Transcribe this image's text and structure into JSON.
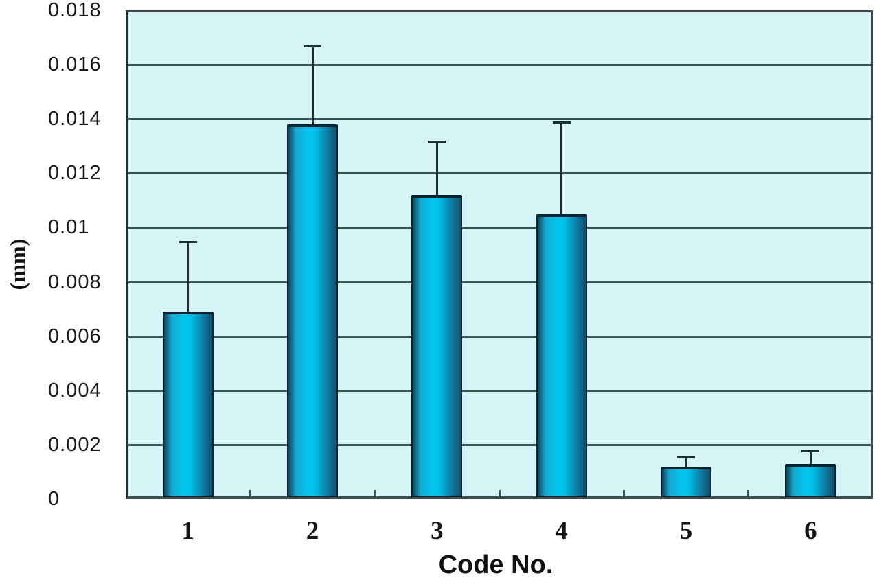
{
  "chart_data": {
    "type": "bar",
    "title": "",
    "xlabel": "Code No.",
    "ylabel": "(mm)",
    "categories": [
      "1",
      "2",
      "3",
      "4",
      "5",
      "6"
    ],
    "values": [
      0.0069,
      0.0138,
      0.0112,
      0.0105,
      0.0012,
      0.0013
    ],
    "error_bar_top_values": [
      0.0095,
      0.0167,
      0.0132,
      0.0139,
      0.0016,
      0.0018
    ],
    "ylim": [
      0,
      0.018
    ],
    "yticks": [
      0,
      0.002,
      0.004,
      0.006,
      0.008,
      0.01,
      0.012,
      0.014,
      0.016,
      0.018
    ],
    "ytick_labels": [
      "0",
      "0.002",
      "0.004",
      "0.006",
      "0.008",
      "0.01",
      "0.012",
      "0.014",
      "0.016",
      "0.018"
    ],
    "grid": true,
    "legend": "none",
    "colors": {
      "canvas": "#ffffff",
      "plot_background": "#d6f3f5",
      "gridline": "#3a5555",
      "axis_border": "#3a4a4a",
      "bar_border": "#0a2433",
      "bar_gradient": [
        "#0d4258",
        "#18a8d0",
        "#02c6ee",
        "#00c0e8",
        "#0c7ea6",
        "#11506a"
      ],
      "error_bar": "#1d2e2e",
      "text": "#1a1a1a"
    }
  }
}
